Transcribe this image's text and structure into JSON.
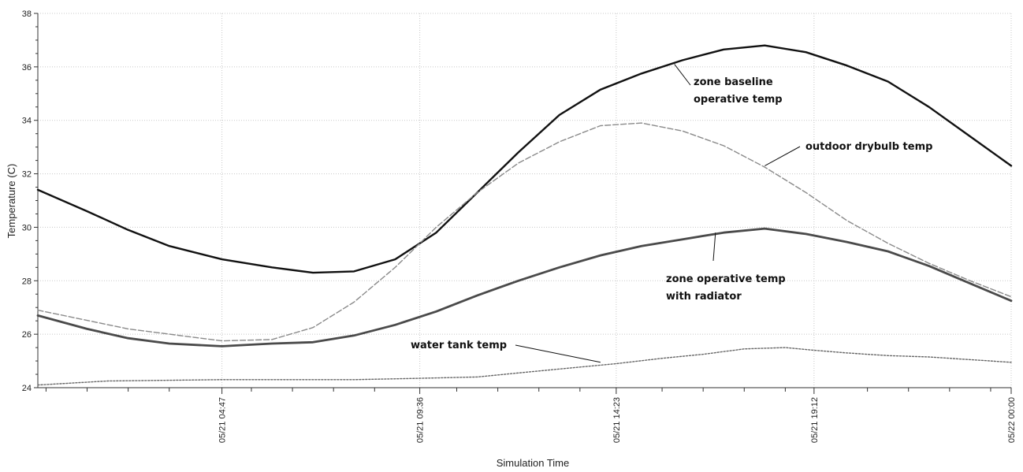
{
  "chart_data": {
    "type": "line",
    "title": "",
    "xlabel": "Simulation Time",
    "ylabel": "Temperature (C)",
    "x_unit": "hours",
    "xlim": [
      0.3,
      24.0
    ],
    "ylim": [
      24,
      38
    ],
    "y_ticks": [
      24,
      26,
      28,
      30,
      32,
      34,
      36,
      38
    ],
    "x_ticks": [
      {
        "x": 4.783,
        "label": "05/21 04:47"
      },
      {
        "x": 9.6,
        "label": "05/21 09:36"
      },
      {
        "x": 14.383,
        "label": "05/21 14:23"
      },
      {
        "x": 19.2,
        "label": "05/21 19:12"
      },
      {
        "x": 24.0,
        "label": "05/22 00:00"
      }
    ],
    "x_minor_ticks": [
      0.5,
      1.5,
      2.5,
      3.5,
      5.5,
      6.5,
      7.5,
      8.5,
      10.5,
      11.5,
      12.5,
      13.5,
      15.5,
      16.5,
      17.5,
      18.5,
      20.5,
      21.5,
      22.5,
      23.5
    ],
    "grid": true,
    "legend": "none",
    "series": [
      {
        "name": "zone baseline operative temp",
        "color": "#111111",
        "style": "solid",
        "x": [
          0.3,
          1.5,
          2.5,
          3.5,
          4.783,
          6.0,
          7.0,
          8.0,
          9.0,
          10.0,
          11.0,
          12.0,
          13.0,
          14.0,
          15.0,
          16.0,
          17.0,
          18.0,
          19.0,
          20.0,
          21.0,
          22.0,
          23.0,
          24.0
        ],
        "y": [
          31.4,
          30.6,
          29.9,
          29.3,
          28.8,
          28.5,
          28.3,
          28.35,
          28.8,
          29.8,
          31.3,
          32.8,
          34.2,
          35.15,
          35.75,
          36.25,
          36.65,
          36.8,
          36.55,
          36.05,
          35.45,
          34.5,
          33.4,
          32.3
        ]
      },
      {
        "name": "outdoor drybulb temp",
        "color": "#8a8a8a",
        "style": "dashed",
        "x": [
          0.3,
          2.5,
          4.783,
          6.0,
          7.0,
          8.0,
          9.0,
          10.0,
          11.0,
          12.0,
          13.0,
          14.0,
          15.0,
          16.0,
          17.0,
          18.0,
          19.0,
          20.0,
          21.0,
          22.0,
          23.0,
          24.0
        ],
        "y": [
          26.9,
          26.2,
          25.75,
          25.8,
          26.25,
          27.2,
          28.5,
          30.0,
          31.3,
          32.4,
          33.2,
          33.8,
          33.9,
          33.6,
          33.05,
          32.25,
          31.3,
          30.25,
          29.4,
          28.65,
          28.0,
          27.4
        ]
      },
      {
        "name": "zone operative temp with radiator",
        "color": "#4a4a4a",
        "style": "solid-thick",
        "x": [
          0.3,
          1.5,
          2.5,
          3.5,
          4.783,
          6.0,
          7.0,
          8.0,
          9.0,
          10.0,
          11.0,
          12.0,
          13.0,
          14.0,
          15.0,
          16.0,
          17.0,
          18.0,
          19.0,
          20.0,
          21.0,
          22.0,
          23.0,
          24.0
        ],
        "y": [
          26.7,
          26.2,
          25.85,
          25.65,
          25.55,
          25.65,
          25.7,
          25.95,
          26.35,
          26.85,
          27.45,
          28.0,
          28.5,
          28.95,
          29.3,
          29.55,
          29.8,
          29.95,
          29.75,
          29.45,
          29.1,
          28.55,
          27.9,
          27.25
        ]
      },
      {
        "name": "water tank temp",
        "color": "#666666",
        "style": "dotted",
        "x": [
          0.3,
          2.0,
          4.783,
          7.0,
          8.0,
          9.6,
          11.0,
          12.0,
          13.0,
          14.383,
          15.5,
          16.5,
          17.5,
          18.5,
          19.2,
          20.0,
          21.0,
          22.0,
          23.0,
          24.0
        ],
        "y": [
          24.1,
          24.25,
          24.3,
          24.3,
          24.3,
          24.35,
          24.4,
          24.55,
          24.7,
          24.9,
          25.1,
          25.25,
          25.45,
          25.5,
          25.4,
          25.3,
          25.2,
          25.15,
          25.05,
          24.95
        ]
      }
    ],
    "annotations": [
      {
        "lines": [
          "zone baseline",
          "operative temp"
        ],
        "series": "zone baseline operative temp",
        "point": [
          15.8,
          36.1
        ]
      },
      {
        "lines": [
          "outdoor drybulb temp"
        ],
        "series": "outdoor drybulb temp",
        "point": [
          18.0,
          32.3
        ]
      },
      {
        "lines": [
          "zone operative temp",
          "with radiator"
        ],
        "series": "zone operative temp with radiator",
        "point": [
          16.8,
          29.8
        ]
      },
      {
        "lines": [
          "water tank temp"
        ],
        "series": "water tank temp",
        "point": [
          14.0,
          24.95
        ]
      }
    ]
  }
}
